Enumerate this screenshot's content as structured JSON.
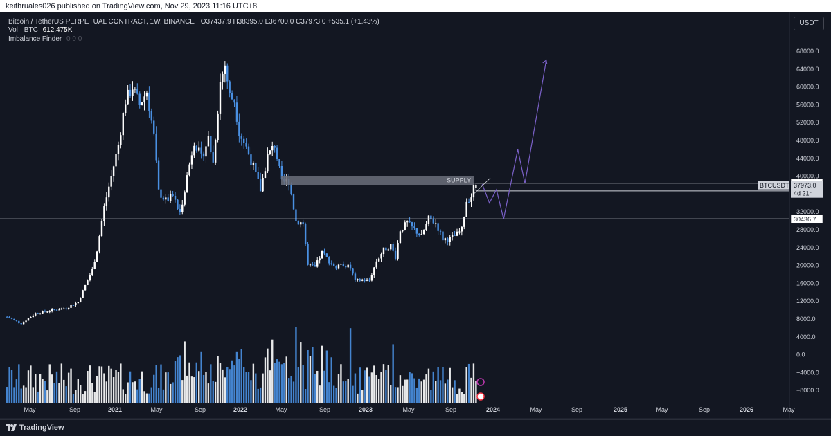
{
  "header": {
    "publish_text": "keithruales026 published on TradingView.com, Nov 29, 2023 11:16 UTC+8"
  },
  "legend": {
    "symbol_line": "Bitcoin / TetherUS PERPETUAL CONTRACT, 1W, BINANCE",
    "ohlc": "O37437.9  H38395.0  L36700.0  C37973.0  +535.1 (+1.43%)",
    "vol_label": "Vol · BTC",
    "vol_value": "612.475K",
    "indicator_name": "Imbalance Finder",
    "indicator_values": "0  0  0"
  },
  "currency_button": "USDT",
  "chart_data": {
    "type": "candlestick",
    "symbol": "BTCUSDT.P",
    "timeframe": "1W",
    "yaxis_ticks": [
      68000,
      64000,
      60000,
      56000,
      52000,
      48000,
      44000,
      40000,
      36000,
      32000,
      28000,
      24000,
      20000,
      16000,
      12000,
      8000,
      4000,
      0,
      -4000,
      -8000
    ],
    "yaxis_labels": [
      "68000.0",
      "64000.0",
      "60000.0",
      "56000.0",
      "52000.0",
      "48000.0",
      "44000.0",
      "40000.0",
      "36000.0",
      "32000.0",
      "28000.0",
      "24000.0",
      "20000.0",
      "16000.0",
      "12000.0",
      "8000.0",
      "4000.0",
      "0.0",
      "−4000.0",
      "−8000.0"
    ],
    "xaxis_labels": [
      "May",
      "Sep",
      "2021",
      "May",
      "Sep",
      "2022",
      "May",
      "Sep",
      "2023",
      "May",
      "Sep",
      "2024",
      "May",
      "Sep",
      "2025",
      "May",
      "Sep",
      "2026",
      "May"
    ],
    "bold_xlabels": [
      "2021",
      "2022",
      "2023",
      "2024",
      "2025",
      "2026"
    ],
    "price_anchors": [
      {
        "t": 0,
        "p": 8500
      },
      {
        "t": 6,
        "p": 7000
      },
      {
        "t": 12,
        "p": 9300
      },
      {
        "t": 25,
        "p": 10500
      },
      {
        "t": 30,
        "p": 11800
      },
      {
        "t": 33,
        "p": 15500
      },
      {
        "t": 36,
        "p": 19000
      },
      {
        "t": 38,
        "p": 23500
      },
      {
        "t": 41,
        "p": 33000
      },
      {
        "t": 44,
        "p": 40000
      },
      {
        "t": 47,
        "p": 47000
      },
      {
        "t": 50,
        "p": 57000
      },
      {
        "t": 53,
        "p": 60000
      },
      {
        "t": 56,
        "p": 56000
      },
      {
        "t": 59,
        "p": 59000
      },
      {
        "t": 62,
        "p": 49000
      },
      {
        "t": 64,
        "p": 36500
      },
      {
        "t": 67,
        "p": 34500
      },
      {
        "t": 70,
        "p": 35500
      },
      {
        "t": 73,
        "p": 31500
      },
      {
        "t": 76,
        "p": 40000
      },
      {
        "t": 79,
        "p": 48000
      },
      {
        "t": 82,
        "p": 44000
      },
      {
        "t": 85,
        "p": 48500
      },
      {
        "t": 87,
        "p": 43000
      },
      {
        "t": 90,
        "p": 61000
      },
      {
        "t": 92,
        "p": 65000
      },
      {
        "t": 94,
        "p": 58000
      },
      {
        "t": 96,
        "p": 57000
      },
      {
        "t": 98,
        "p": 50000
      },
      {
        "t": 101,
        "p": 46500
      },
      {
        "t": 104,
        "p": 42000
      },
      {
        "t": 107,
        "p": 37000
      },
      {
        "t": 110,
        "p": 44500
      },
      {
        "t": 113,
        "p": 47000
      },
      {
        "t": 116,
        "p": 38500
      },
      {
        "t": 119,
        "p": 39000
      },
      {
        "t": 122,
        "p": 30000
      },
      {
        "t": 125,
        "p": 29500
      },
      {
        "t": 127,
        "p": 20000
      },
      {
        "t": 130,
        "p": 19500
      },
      {
        "t": 133,
        "p": 23000
      },
      {
        "t": 136,
        "p": 21000
      },
      {
        "t": 139,
        "p": 19500
      },
      {
        "t": 142,
        "p": 20200
      },
      {
        "t": 145,
        "p": 19500
      },
      {
        "t": 147,
        "p": 16500
      },
      {
        "t": 150,
        "p": 16800
      },
      {
        "t": 153,
        "p": 16600
      },
      {
        "t": 156,
        "p": 21000
      },
      {
        "t": 159,
        "p": 23500
      },
      {
        "t": 162,
        "p": 24500
      },
      {
        "t": 164,
        "p": 22000
      },
      {
        "t": 166,
        "p": 28000
      },
      {
        "t": 169,
        "p": 29500
      },
      {
        "t": 172,
        "p": 28000
      },
      {
        "t": 175,
        "p": 26500
      },
      {
        "t": 178,
        "p": 30500
      },
      {
        "t": 181,
        "p": 29500
      },
      {
        "t": 184,
        "p": 26000
      },
      {
        "t": 187,
        "p": 25900
      },
      {
        "t": 190,
        "p": 27000
      },
      {
        "t": 192,
        "p": 28000
      },
      {
        "t": 194,
        "p": 34500
      },
      {
        "t": 196,
        "p": 35500
      },
      {
        "t": 197,
        "p": 37400
      },
      {
        "t": 198,
        "p": 37973
      }
    ],
    "horizontal_levels": [
      {
        "price": 38425.0,
        "label": "38425.0",
        "style": "outlined"
      },
      {
        "price": 37973.0,
        "label": "37973.0",
        "style": "current"
      },
      {
        "price": 36700.0,
        "label": "36700.0",
        "style": "outlined"
      },
      {
        "price": 30436.7,
        "label": "30436.7",
        "style": "outlined"
      }
    ],
    "current_price_tag": {
      "symbol": "BTCUSDT.P",
      "price": "37973.0",
      "countdown": "4d 21h"
    },
    "supply_zone": {
      "label": "SUPPLY",
      "top": 40000,
      "bottom": 38000
    },
    "projection_path": [
      {
        "t": 201,
        "p": 38200
      },
      {
        "t": 204,
        "p": 34000
      },
      {
        "t": 207,
        "p": 37000
      },
      {
        "t": 210,
        "p": 30400
      },
      {
        "t": 216,
        "p": 46000
      },
      {
        "t": 219,
        "p": 38400
      },
      {
        "t": 228,
        "p": 66000
      }
    ],
    "colors": {
      "up": "#ffffff",
      "down": "#4a90e2",
      "background": "#131722",
      "projection": "#7b61c9",
      "supply": "#6b6f7a"
    }
  }
}
